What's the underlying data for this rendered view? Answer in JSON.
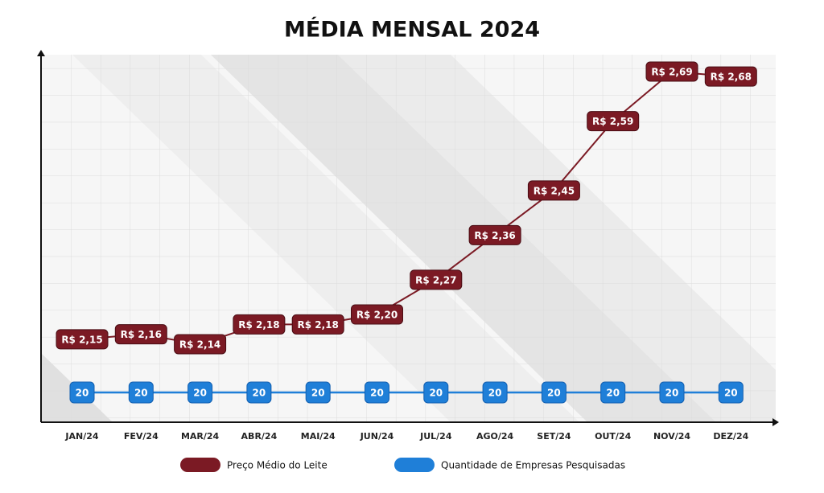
{
  "chart_data": {
    "type": "line",
    "title": "MÉDIA MENSAL 2024",
    "categories": [
      "JAN/24",
      "FEV/24",
      "MAR/24",
      "ABR/24",
      "MAI/24",
      "JUN/24",
      "JUL/24",
      "AGO/24",
      "SET/24",
      "OUT/24",
      "NOV/24",
      "DEZ/24"
    ],
    "series": [
      {
        "name": "Preço Médio do Leite",
        "color": "#7b1a24",
        "values": [
          2.15,
          2.16,
          2.14,
          2.18,
          2.18,
          2.2,
          2.27,
          2.36,
          2.45,
          2.59,
          2.69,
          2.68
        ],
        "value_labels": [
          "R$ 2,15",
          "R$ 2,16",
          "R$ 2,14",
          "R$ 2,18",
          "R$ 2,18",
          "R$ 2,20",
          "R$ 2,27",
          "R$ 2,36",
          "R$ 2,45",
          "R$ 2,59",
          "R$ 2,69",
          "R$ 2,68"
        ]
      },
      {
        "name": "Quantidade de Empresas Pesquisadas",
        "color": "#1f7fd8",
        "values": [
          20,
          20,
          20,
          20,
          20,
          20,
          20,
          20,
          20,
          20,
          20,
          20
        ]
      }
    ]
  }
}
